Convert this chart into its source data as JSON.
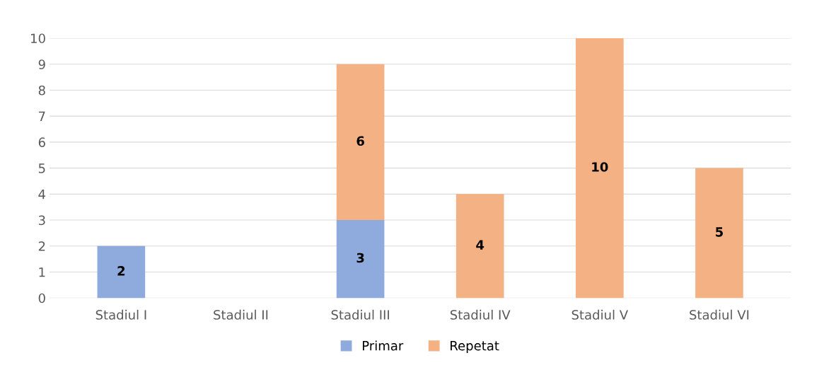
{
  "chart_data": {
    "type": "bar",
    "stacked": true,
    "categories": [
      "Stadiul I",
      "Stadiul II",
      "Stadiul III",
      "Stadiul IV",
      "Stadiul V",
      "Stadiul VI"
    ],
    "series": [
      {
        "name": "Primar",
        "color": "#8faadc",
        "values": [
          2,
          0,
          3,
          0,
          0,
          0
        ],
        "value_labels": [
          "2",
          null,
          "3",
          null,
          null,
          null
        ]
      },
      {
        "name": "Repetat",
        "color": "#f4b183",
        "values": [
          0,
          0,
          6,
          4,
          10,
          5
        ],
        "value_labels": [
          null,
          null,
          "6",
          "4",
          "10",
          "5"
        ]
      }
    ],
    "ylim": [
      0,
      10
    ],
    "yticks": [
      0,
      1,
      2,
      3,
      4,
      5,
      6,
      7,
      8,
      9,
      10
    ],
    "grid": "y",
    "legend": "bottom"
  }
}
